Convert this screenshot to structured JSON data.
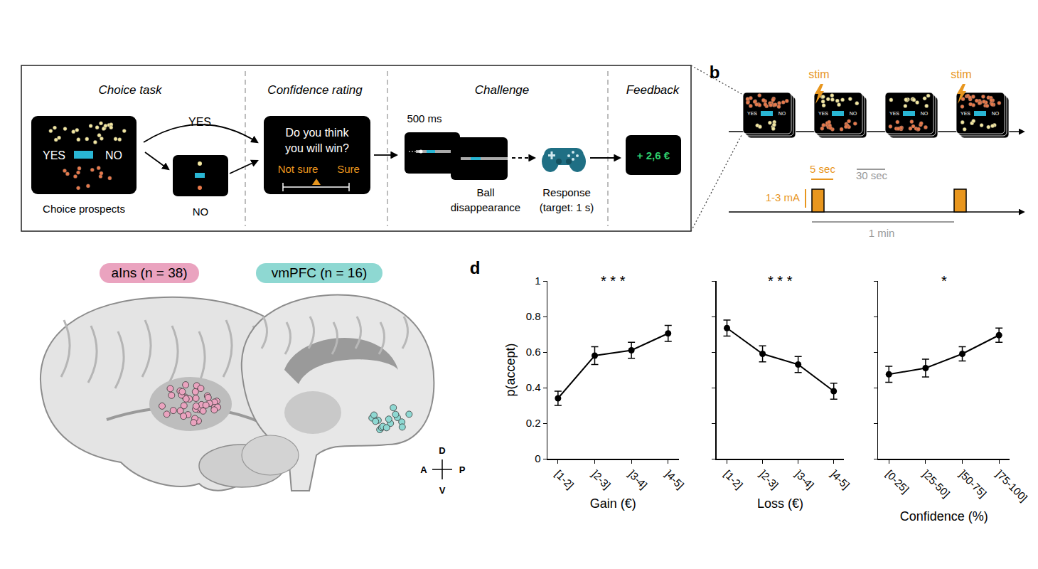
{
  "diagram": {
    "panel_a": {
      "sections": [
        "Choice task",
        "Confidence rating",
        "Challenge",
        "Feedback"
      ],
      "choice_screen": {
        "yes": "YES",
        "no": "NO",
        "caption": "Choice prospects"
      },
      "arrow_yes": "YES",
      "no_screen_caption": "NO",
      "confidence_screen": {
        "lines": [
          "Do you think",
          "you will win?"
        ],
        "left": "Not sure",
        "right": "Sure"
      },
      "challenge": {
        "duration": "500 ms",
        "ball_caption": [
          "Ball",
          "disappearance"
        ],
        "response_caption": [
          "Response",
          "(target: 1 s)"
        ]
      },
      "feedback": "+ 2,6 €"
    },
    "panel_b": {
      "letter": "b",
      "stim": "stim",
      "pulse_duration": "5 sec",
      "interval": "30 sec",
      "current": "1-3 mA",
      "period": "1 min"
    },
    "panel_c": {
      "regions": [
        {
          "label": "aIns (n = 38)",
          "color": "#eaa3bf",
          "dots": 38
        },
        {
          "label": "vmPFC (n = 16)",
          "color": "#8ed8d2",
          "dots": 16
        }
      ],
      "compass": {
        "up": "D",
        "down": "V",
        "left": "A",
        "right": "P"
      }
    },
    "panel_d": {
      "letter": "d"
    }
  },
  "chart_data": [
    {
      "type": "line",
      "xlabel": "Gain (€)",
      "ylabel": "p(accept)",
      "categories": [
        "[1-2]",
        "]2-3]",
        "]3-4]",
        "]4-5]"
      ],
      "values": [
        0.34,
        0.58,
        0.61,
        0.705
      ],
      "errors": [
        0.04,
        0.05,
        0.045,
        0.045
      ],
      "annotations": [
        "* * *"
      ],
      "ylim": [
        0,
        1
      ],
      "yticks": [
        0,
        0.2,
        0.4,
        0.6,
        0.8,
        1
      ],
      "color": "#000000",
      "marker": "circle",
      "grid": false
    },
    {
      "type": "line",
      "xlabel": "Loss (€)",
      "categories": [
        "[1-2]",
        "]2-3]",
        "]3-4]",
        "]4-5]"
      ],
      "values": [
        0.735,
        0.59,
        0.53,
        0.38
      ],
      "errors": [
        0.045,
        0.045,
        0.045,
        0.045
      ],
      "annotations": [
        "* * *"
      ],
      "ylim": [
        0,
        1
      ],
      "yticks": [
        0,
        0.2,
        0.4,
        0.6,
        0.8,
        1
      ],
      "tick_labels": "x",
      "color": "#000000",
      "marker": "circle",
      "grid": false
    },
    {
      "type": "line",
      "xlabel": "Confidence (%)",
      "categories": [
        "[0-25]",
        "]25-50]",
        "]50-75]",
        "]75-100]"
      ],
      "values": [
        0.475,
        0.51,
        0.59,
        0.695
      ],
      "errors": [
        0.045,
        0.05,
        0.04,
        0.04
      ],
      "annotations": [
        "*"
      ],
      "ylim": [
        0,
        1
      ],
      "yticks": [
        0,
        0.2,
        0.4,
        0.6,
        0.8,
        1
      ],
      "tick_labels": "x",
      "color": "#000000",
      "marker": "circle",
      "grid": false
    }
  ]
}
